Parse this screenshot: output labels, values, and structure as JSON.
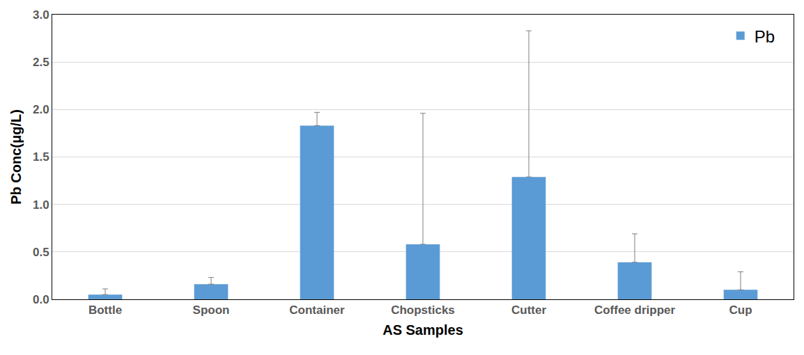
{
  "chart_data": {
    "type": "bar",
    "x_label": "AS Samples",
    "y_label": "Pb Conc(μg/L)",
    "categories": [
      "Bottle",
      "Spoon",
      "Container",
      "Chopsticks",
      "Cutter",
      "Coffee dripper",
      "Cup"
    ],
    "series": [
      {
        "name": "Pb",
        "color": "#5b9bd5",
        "values": [
          0.05,
          0.16,
          1.83,
          0.58,
          1.29,
          0.39,
          0.1
        ],
        "errors": [
          0.06,
          0.07,
          0.14,
          1.38,
          1.54,
          0.3,
          0.19
        ]
      }
    ],
    "ylim": [
      0,
      3
    ],
    "yticks": [
      {
        "value": 0,
        "label": "0.0"
      },
      0.5,
      {
        "value": 1,
        "label": "1.0"
      },
      1.5,
      {
        "value": 2,
        "label": "2.0"
      },
      2.5,
      {
        "value": 3,
        "label": "3.0"
      }
    ],
    "grid": true,
    "legend": "top-right"
  }
}
